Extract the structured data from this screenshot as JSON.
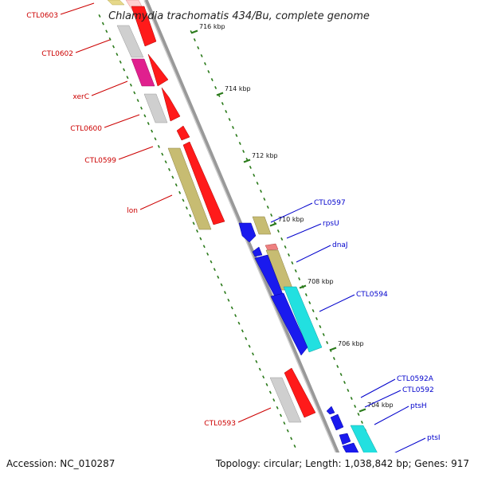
{
  "title": "Chlamydia trachomatis 434/Bu, complete genome",
  "accession": "Accession: NC_010287",
  "topology": "Topology: circular; Length: 1,038,842 bp; Genes: 917",
  "colors": {
    "label_left": "#cc0000",
    "label_right": "#0000cc",
    "tick": "#2a7a1a",
    "backbone": "#888888"
  },
  "ticks": [
    {
      "label": "716 kbp"
    },
    {
      "label": "714 kbp"
    },
    {
      "label": "712 kbp"
    },
    {
      "label": "710 kbp"
    },
    {
      "label": "708 kbp"
    },
    {
      "label": "706 kbp"
    },
    {
      "label": "704 kbp"
    }
  ],
  "genes_left": [
    {
      "label": "CTL0603"
    },
    {
      "label": "CTL0602"
    },
    {
      "label": "xerC"
    },
    {
      "label": "CTL0600"
    },
    {
      "label": "CTL0599"
    },
    {
      "label": "lon"
    },
    {
      "label": "CTL0593"
    }
  ],
  "genes_right": [
    {
      "label": "CTL0597"
    },
    {
      "label": "rpsU"
    },
    {
      "label": "dnaJ"
    },
    {
      "label": "CTL0594"
    },
    {
      "label": "CTL0592A"
    },
    {
      "label": "CTL0592"
    },
    {
      "label": "ptsH"
    },
    {
      "label": "ptsI"
    }
  ]
}
